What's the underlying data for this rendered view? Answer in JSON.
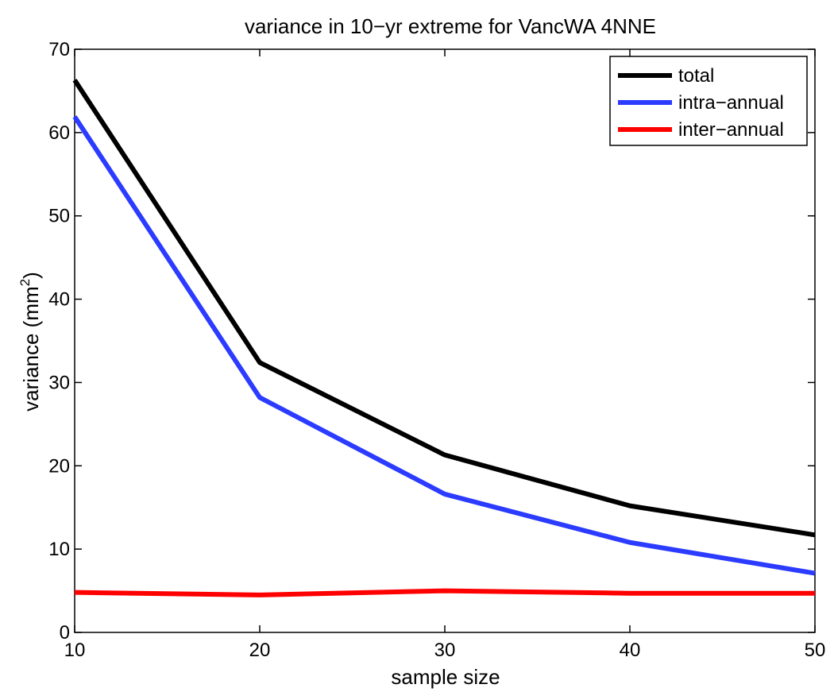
{
  "chart_data": {
    "type": "line",
    "title": "variance in 10−yr extreme for VancWA 4NNE",
    "xlabel": "sample size",
    "ylabel": "variance (mm",
    "ylabel_sup": "2",
    "ylabel_close": ")",
    "xlim": [
      10,
      50
    ],
    "ylim": [
      0,
      70
    ],
    "xticks": [
      10,
      20,
      30,
      40,
      50
    ],
    "yticks": [
      0,
      10,
      20,
      30,
      40,
      50,
      60,
      70
    ],
    "x": [
      10,
      20,
      30,
      40,
      50
    ],
    "legend_position": "top-right",
    "grid": false,
    "series": [
      {
        "name": "total",
        "color": "#000000",
        "values": [
          66.3,
          32.4,
          21.3,
          15.2,
          11.7
        ]
      },
      {
        "name": "intra−annual",
        "color": "#2b3bff",
        "values": [
          61.9,
          28.2,
          16.6,
          10.8,
          7.1
        ]
      },
      {
        "name": "inter−annual",
        "color": "#ff0000",
        "values": [
          4.8,
          4.5,
          5.0,
          4.7,
          4.7
        ]
      }
    ]
  }
}
